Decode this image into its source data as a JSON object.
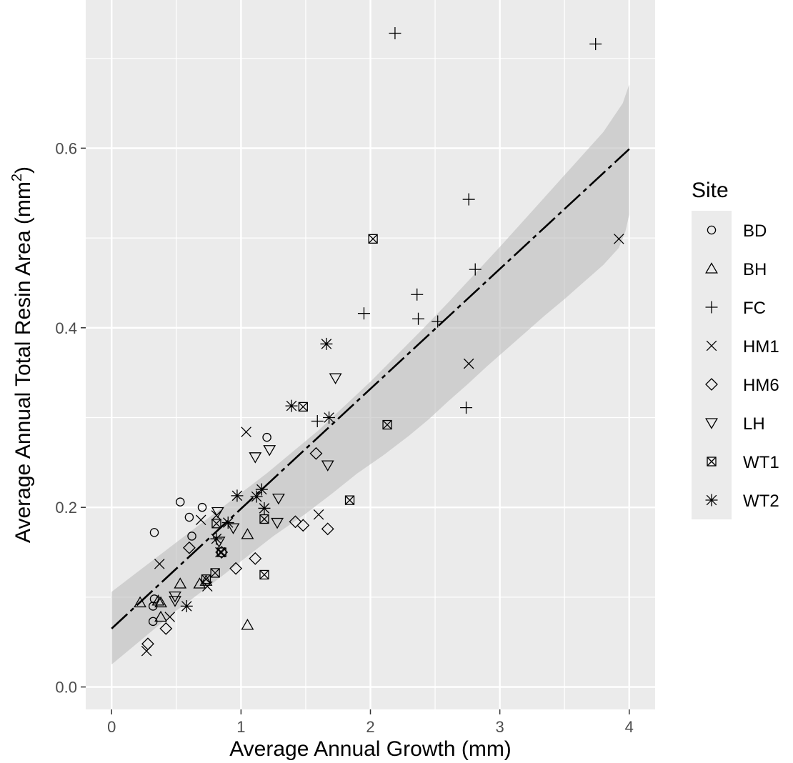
{
  "chart_data": {
    "type": "scatter",
    "title": "",
    "xlabel": "Average Annual Growth (mm)",
    "ylabel_main": "Average Annual Total Resin Area (mm",
    "ylabel_sup": "2",
    "ylabel_close": ")",
    "xlim": [
      -0.2,
      4.2
    ],
    "ylim": [
      -0.025,
      0.765
    ],
    "x_ticks": [
      0,
      1,
      2,
      3,
      4
    ],
    "x_tick_labels": [
      "0",
      "1",
      "2",
      "3",
      "4"
    ],
    "y_ticks": [
      0.0,
      0.2,
      0.4,
      0.6
    ],
    "y_tick_labels": [
      "0.0",
      "0.2",
      "0.4",
      "0.6"
    ],
    "grid": true,
    "legend_title": "Site",
    "legend_placement": "right",
    "background_color": "#ebebeb",
    "grid_color": "#ffffff",
    "band_color": "#bdbdbd",
    "fit_line": {
      "intercept": 0.065,
      "slope": 0.1335,
      "x_range": [
        0,
        4
      ],
      "ci_lower": [
        0.025,
        0.055,
        0.085,
        0.112,
        0.14,
        0.168,
        0.193,
        0.215,
        0.238,
        0.258,
        0.28,
        0.298,
        0.318,
        0.337,
        0.357,
        0.376,
        0.395,
        0.414,
        0.432,
        0.451,
        0.47,
        0.489,
        0.507,
        0.526
      ],
      "ci_upper": [
        0.106,
        0.128,
        0.15,
        0.172,
        0.194,
        0.216,
        0.238,
        0.262,
        0.286,
        0.313,
        0.34,
        0.369,
        0.398,
        0.428,
        0.459,
        0.49,
        0.522,
        0.554,
        0.586,
        0.618,
        0.65,
        0.671
      ],
      "ci_x_lower": [
        0,
        0.25,
        0.5,
        0.75,
        1.0,
        1.25,
        1.5,
        1.7,
        1.9,
        2.1,
        2.3,
        2.45,
        2.6,
        2.75,
        2.9,
        3.05,
        3.2,
        3.35,
        3.5,
        3.65,
        3.8,
        3.92,
        3.97,
        4.0
      ],
      "ci_x_upper": [
        0,
        0.2,
        0.4,
        0.6,
        0.8,
        1.0,
        1.2,
        1.4,
        1.6,
        1.8,
        2.0,
        2.2,
        2.4,
        2.6,
        2.8,
        3.0,
        3.2,
        3.4,
        3.6,
        3.8,
        3.95,
        4.0
      ]
    },
    "series": [
      {
        "name": "BD",
        "shape": "circle",
        "points": [
          [
            0.33,
            0.172
          ],
          [
            0.53,
            0.206
          ],
          [
            0.6,
            0.189
          ],
          [
            0.62,
            0.168
          ],
          [
            0.7,
            0.2
          ],
          [
            0.33,
            0.098
          ],
          [
            0.32,
            0.09
          ],
          [
            0.32,
            0.073
          ],
          [
            1.2,
            0.278
          ]
        ]
      },
      {
        "name": "BH",
        "shape": "triangle",
        "points": [
          [
            0.22,
            0.094
          ],
          [
            0.36,
            0.096
          ],
          [
            0.38,
            0.094
          ],
          [
            0.53,
            0.115
          ],
          [
            0.68,
            0.115
          ],
          [
            0.73,
            0.118
          ],
          [
            1.05,
            0.17
          ],
          [
            1.05,
            0.069
          ],
          [
            0.38,
            0.078
          ]
        ]
      },
      {
        "name": "FC",
        "shape": "plus",
        "points": [
          [
            2.19,
            0.728
          ],
          [
            3.74,
            0.716
          ],
          [
            2.76,
            0.543
          ],
          [
            2.81,
            0.465
          ],
          [
            2.36,
            0.437
          ],
          [
            1.95,
            0.416
          ],
          [
            2.37,
            0.41
          ],
          [
            2.52,
            0.407
          ],
          [
            2.74,
            0.311
          ],
          [
            1.59,
            0.296
          ]
        ]
      },
      {
        "name": "HM1",
        "shape": "x",
        "points": [
          [
            3.92,
            0.499
          ],
          [
            2.76,
            0.36
          ],
          [
            1.04,
            0.284
          ],
          [
            1.6,
            0.192
          ],
          [
            0.69,
            0.186
          ],
          [
            0.37,
            0.137
          ],
          [
            0.74,
            0.112
          ],
          [
            0.45,
            0.078
          ],
          [
            0.27,
            0.04
          ],
          [
            0.84,
            0.15
          ],
          [
            0.81,
            0.191
          ]
        ]
      },
      {
        "name": "HM6",
        "shape": "diamond",
        "points": [
          [
            1.58,
            0.26
          ],
          [
            1.42,
            0.184
          ],
          [
            1.48,
            0.18
          ],
          [
            1.67,
            0.176
          ],
          [
            0.6,
            0.155
          ],
          [
            1.11,
            0.143
          ],
          [
            0.96,
            0.132
          ],
          [
            0.42,
            0.065
          ],
          [
            0.28,
            0.048
          ],
          [
            0.85,
            0.15
          ]
        ]
      },
      {
        "name": "LH",
        "shape": "triangle-down",
        "points": [
          [
            1.73,
            0.344
          ],
          [
            1.22,
            0.264
          ],
          [
            1.11,
            0.256
          ],
          [
            1.67,
            0.247
          ],
          [
            1.29,
            0.21
          ],
          [
            0.82,
            0.195
          ],
          [
            0.94,
            0.177
          ],
          [
            1.28,
            0.183
          ],
          [
            0.83,
            0.162
          ],
          [
            0.49,
            0.101
          ],
          [
            0.49,
            0.096
          ]
        ]
      },
      {
        "name": "WT1",
        "shape": "square-x",
        "points": [
          [
            2.02,
            0.499
          ],
          [
            1.48,
            0.312
          ],
          [
            2.13,
            0.292
          ],
          [
            1.84,
            0.208
          ],
          [
            0.81,
            0.182
          ],
          [
            1.18,
            0.187
          ],
          [
            0.85,
            0.15
          ],
          [
            0.8,
            0.127
          ],
          [
            0.73,
            0.12
          ],
          [
            1.18,
            0.125
          ]
        ]
      },
      {
        "name": "WT2",
        "shape": "asterisk",
        "points": [
          [
            1.66,
            0.382
          ],
          [
            1.39,
            0.313
          ],
          [
            1.68,
            0.3
          ],
          [
            1.16,
            0.22
          ],
          [
            0.97,
            0.213
          ],
          [
            1.12,
            0.212
          ],
          [
            1.18,
            0.199
          ],
          [
            0.9,
            0.183
          ],
          [
            0.81,
            0.165
          ],
          [
            0.58,
            0.09
          ]
        ]
      }
    ]
  }
}
